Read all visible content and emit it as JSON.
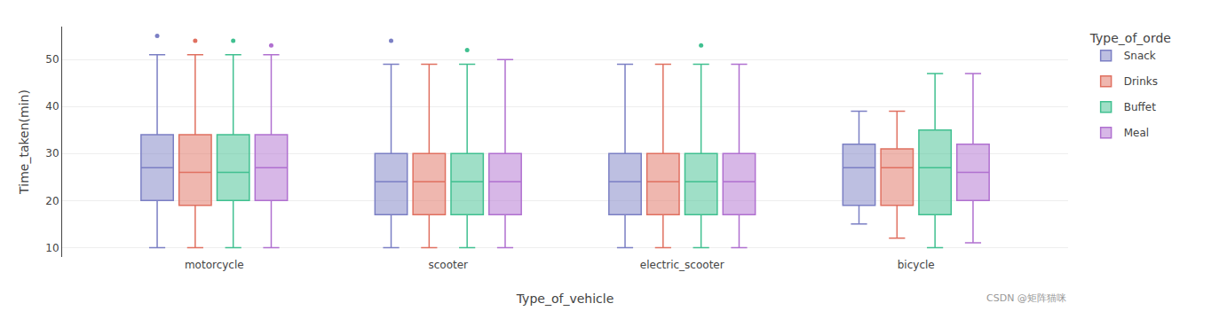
{
  "chart_data": {
    "type": "box",
    "xlabel": "Type_of_vehicle",
    "ylabel": "Time_taken(min)",
    "legend_title": "Type_of_orde",
    "legend": "right",
    "grid": true,
    "annotations": [
      "CSDN @矩阵猫咪"
    ],
    "categories": [
      "motorcycle",
      "scooter",
      "electric_scooter",
      "bicycle"
    ],
    "ylim": [
      8,
      57
    ],
    "yticks": [
      10,
      20,
      30,
      40,
      50
    ],
    "series": [
      {
        "name": "Snack",
        "color": "#7b7fc4",
        "values": [
          {
            "low": 10,
            "q1": 20,
            "median": 27,
            "q3": 34,
            "high": 51,
            "outliers": [
              55
            ]
          },
          {
            "low": 10,
            "q1": 17,
            "median": 24,
            "q3": 30,
            "high": 49,
            "outliers": [
              54
            ]
          },
          {
            "low": 10,
            "q1": 17,
            "median": 24,
            "q3": 30,
            "high": 49,
            "outliers": []
          },
          {
            "low": 15,
            "q1": 19,
            "median": 27,
            "q3": 32,
            "high": 39,
            "outliers": []
          }
        ]
      },
      {
        "name": "Drinks",
        "color": "#e07060",
        "values": [
          {
            "low": 10,
            "q1": 19,
            "median": 26,
            "q3": 34,
            "high": 51,
            "outliers": [
              54
            ]
          },
          {
            "low": 10,
            "q1": 17,
            "median": 24,
            "q3": 30,
            "high": 49,
            "outliers": []
          },
          {
            "low": 10,
            "q1": 17,
            "median": 24,
            "q3": 30,
            "high": 49,
            "outliers": []
          },
          {
            "low": 12,
            "q1": 19,
            "median": 27,
            "q3": 31,
            "high": 39,
            "outliers": []
          }
        ]
      },
      {
        "name": "Buffet",
        "color": "#40c090",
        "values": [
          {
            "low": 10,
            "q1": 20,
            "median": 26,
            "q3": 34,
            "high": 51,
            "outliers": [
              54
            ]
          },
          {
            "low": 10,
            "q1": 17,
            "median": 24,
            "q3": 30,
            "high": 49,
            "outliers": [
              52
            ]
          },
          {
            "low": 10,
            "q1": 17,
            "median": 24,
            "q3": 30,
            "high": 49,
            "outliers": [
              53
            ]
          },
          {
            "low": 10,
            "q1": 17,
            "median": 27,
            "q3": 35,
            "high": 47,
            "outliers": []
          }
        ]
      },
      {
        "name": "Meal",
        "color": "#b070d0",
        "values": [
          {
            "low": 10,
            "q1": 20,
            "median": 27,
            "q3": 34,
            "high": 51,
            "outliers": [
              53
            ]
          },
          {
            "low": 10,
            "q1": 17,
            "median": 24,
            "q3": 30,
            "high": 50,
            "outliers": []
          },
          {
            "low": 10,
            "q1": 17,
            "median": 24,
            "q3": 30,
            "high": 49,
            "outliers": []
          },
          {
            "low": 11,
            "q1": 20,
            "median": 26,
            "q3": 32,
            "high": 47,
            "outliers": []
          }
        ]
      }
    ]
  }
}
